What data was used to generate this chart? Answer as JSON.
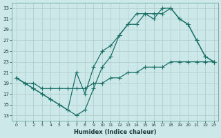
{
  "xlabel": "Humidex (Indice chaleur)",
  "bg_color": "#cce8e8",
  "grid_color": "#aacccc",
  "line_color": "#1a7068",
  "x_values": [
    0,
    1,
    2,
    3,
    4,
    5,
    6,
    7,
    8,
    9,
    10,
    11,
    12,
    13,
    14,
    15,
    16,
    17,
    18,
    19,
    20,
    21,
    22,
    23
  ],
  "line_diag": [
    20,
    19,
    19,
    18,
    18,
    18,
    18,
    18,
    18,
    19,
    19,
    20,
    20,
    21,
    21,
    22,
    22,
    22,
    23,
    23,
    23,
    23,
    23,
    23
  ],
  "line_mid": [
    20,
    19,
    18,
    17,
    16,
    15,
    14,
    21,
    17,
    22,
    25,
    26,
    28,
    30,
    30,
    32,
    31,
    33,
    33,
    31,
    30,
    27,
    24,
    23
  ],
  "line_top": [
    20,
    19,
    18,
    17,
    16,
    15,
    14,
    13,
    14,
    18,
    22,
    24,
    28,
    30,
    32,
    32,
    32,
    32,
    33,
    31,
    30,
    27,
    24,
    23
  ],
  "ylim": [
    12,
    34
  ],
  "yticks": [
    13,
    15,
    17,
    19,
    21,
    23,
    25,
    27,
    29,
    31,
    33
  ],
  "xlim": [
    -0.5,
    23.5
  ]
}
